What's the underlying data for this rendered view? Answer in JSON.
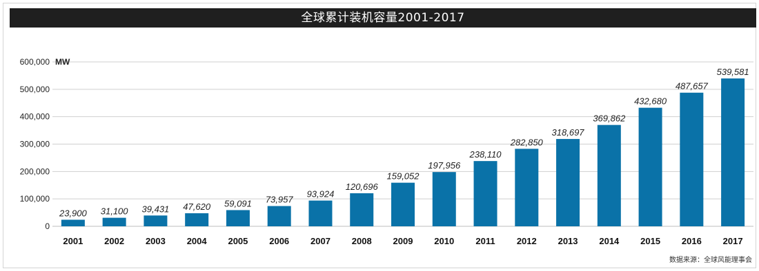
{
  "title": "全球累计装机容量2001-2017",
  "source": "数据来源：全球风能理事会",
  "chart_data": {
    "type": "bar",
    "title": "全球累计装机容量2001-2017",
    "xlabel": "",
    "ylabel": "",
    "unit": "MW",
    "ylim": [
      0,
      600000
    ],
    "yticks": [
      "0",
      "100,000",
      "200,000",
      "300,000",
      "400,000",
      "500,000",
      "600,000"
    ],
    "categories": [
      "2001",
      "2002",
      "2003",
      "2004",
      "2005",
      "2006",
      "2007",
      "2008",
      "2009",
      "2010",
      "2011",
      "2012",
      "2013",
      "2014",
      "2015",
      "2016",
      "2017"
    ],
    "values": [
      23900,
      31100,
      39431,
      47620,
      59091,
      73957,
      93924,
      120696,
      159052,
      197956,
      238110,
      282850,
      318697,
      369862,
      432680,
      487657,
      539581
    ],
    "value_labels": [
      "23,900",
      "31,100",
      "39,431",
      "47,620",
      "59,091",
      "73,957",
      "93,924",
      "120,696",
      "159,052",
      "197,956",
      "238,110",
      "282,850",
      "318,697",
      "369,862",
      "432,680",
      "487,657",
      "539,581"
    ],
    "grid": true,
    "bar_color": "#0a72a8",
    "title_bar_color": "#1f1f1f"
  }
}
